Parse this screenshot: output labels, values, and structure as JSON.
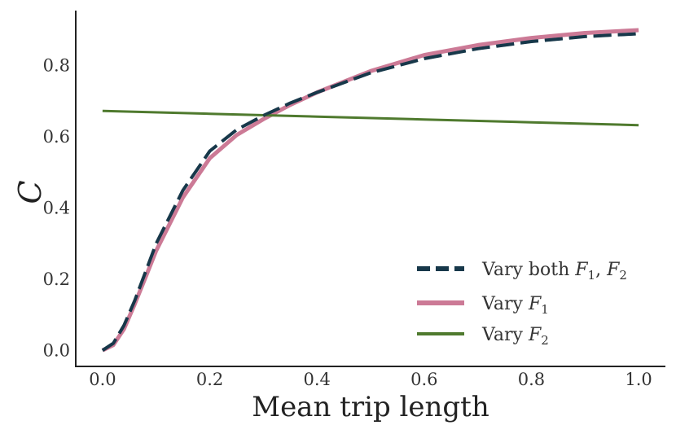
{
  "chart_data": {
    "type": "line",
    "xlabel": "Mean trip length",
    "ylabel": "C",
    "xlim": [
      -0.05,
      1.05
    ],
    "ylim": [
      -0.045,
      0.955
    ],
    "x_ticks": [
      "0.0",
      "0.2",
      "0.4",
      "0.6",
      "0.8",
      "1.0"
    ],
    "y_ticks": [
      "0.0",
      "0.2",
      "0.4",
      "0.6",
      "0.8"
    ],
    "grid": false,
    "legend_position": "lower-right",
    "series": [
      {
        "name": "Vary both F1, F2",
        "legend_label": {
          "text": "Vary both ",
          "v1": "F",
          "s1": "1",
          "sep": ", ",
          "v2": "F",
          "s2": "2"
        },
        "color": "#17384a",
        "style": "dashed",
        "x": [
          0.0,
          0.02,
          0.04,
          0.06,
          0.08,
          0.1,
          0.15,
          0.2,
          0.25,
          0.3,
          0.35,
          0.4,
          0.5,
          0.6,
          0.7,
          0.8,
          0.9,
          1.0
        ],
        "y": [
          0.0,
          0.02,
          0.07,
          0.14,
          0.22,
          0.3,
          0.45,
          0.56,
          0.62,
          0.66,
          0.695,
          0.725,
          0.78,
          0.82,
          0.848,
          0.868,
          0.882,
          0.89
        ]
      },
      {
        "name": "Vary F1",
        "legend_label": {
          "text": "Vary ",
          "v1": "F",
          "s1": "1"
        },
        "color": "#cc7a96",
        "style": "solid",
        "x": [
          0.0,
          0.02,
          0.04,
          0.06,
          0.08,
          0.1,
          0.15,
          0.2,
          0.25,
          0.3,
          0.35,
          0.4,
          0.5,
          0.6,
          0.7,
          0.8,
          0.9,
          1.0
        ],
        "y": [
          0.0,
          0.015,
          0.06,
          0.13,
          0.205,
          0.28,
          0.43,
          0.54,
          0.605,
          0.65,
          0.69,
          0.725,
          0.785,
          0.83,
          0.858,
          0.878,
          0.892,
          0.9
        ]
      },
      {
        "name": "Vary F2",
        "legend_label": {
          "text": "Vary ",
          "v1": "F",
          "s1": "2"
        },
        "color": "#4f7a2e",
        "style": "solid",
        "x": [
          0.0,
          0.2,
          0.4,
          0.6,
          0.8,
          1.0
        ],
        "y": [
          0.673,
          0.665,
          0.657,
          0.649,
          0.641,
          0.633
        ]
      }
    ]
  }
}
